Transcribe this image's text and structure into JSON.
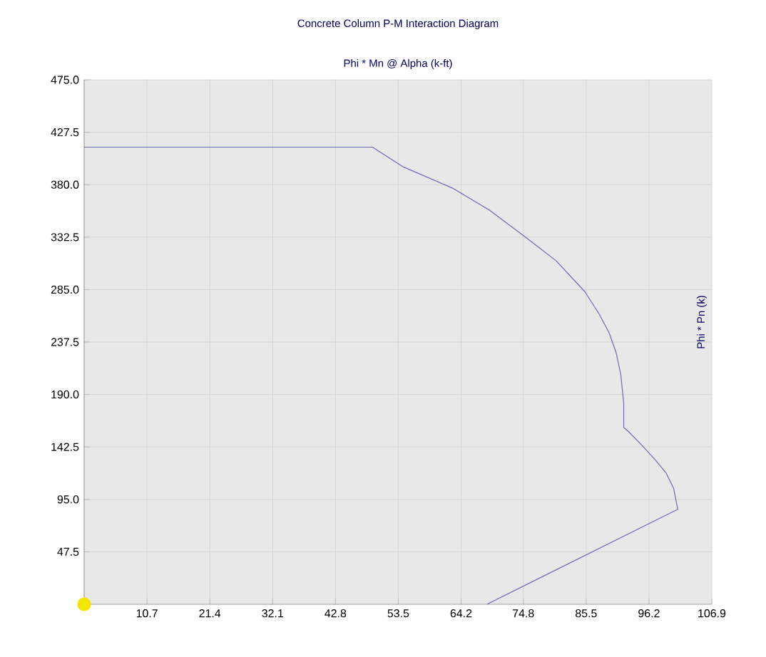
{
  "chart_data": {
    "type": "line",
    "title": "Concrete Column P-M Interaction Diagram",
    "xlabel": "Phi * Mn @ Alpha   (k-ft)",
    "ylabel": "Phi * Pn   (k)",
    "xlim": [
      0,
      106.9
    ],
    "ylim": [
      0,
      475
    ],
    "xticks": [
      {
        "value": 0,
        "label": null
      },
      10.7,
      21.4,
      32.1,
      42.8,
      53.5,
      64.2,
      74.8,
      85.5,
      96.2,
      106.9
    ],
    "yticks": [
      {
        "value": 47.5,
        "label": "47.5"
      },
      {
        "value": 95,
        "label": "95.0"
      },
      {
        "value": 142.5,
        "label": "142.5"
      },
      {
        "value": 190,
        "label": "190.0"
      },
      {
        "value": 237.5,
        "label": "237.5"
      },
      {
        "value": 285,
        "label": "285.0"
      },
      {
        "value": 332.5,
        "label": "332.5"
      },
      {
        "value": 380,
        "label": "380.0"
      },
      {
        "value": 427.5,
        "label": "427.5"
      },
      {
        "value": 475,
        "label": "475.0"
      }
    ],
    "grid": true,
    "legend": false,
    "series": [
      {
        "color": "#6b6bb5",
        "marker": "none",
        "x": [
          0,
          49.1,
          54.4,
          62.7,
          69.0,
          74.8,
          80.4,
          85.3,
          87.7,
          89.4,
          90.6,
          91.4,
          91.9,
          91.9,
          92.6,
          95.0,
          97.4,
          99.1,
          100.4,
          101.1,
          68.6
        ],
        "values": [
          414,
          414,
          396,
          377,
          357,
          334,
          311,
          283,
          263,
          246,
          228,
          208,
          182,
          160,
          157,
          144,
          130,
          119,
          105,
          86,
          0
        ]
      },
      {
        "type": "scatter",
        "color": "#f2e600",
        "marker": "circle",
        "x": [
          0
        ],
        "values": [
          0
        ]
      }
    ]
  }
}
